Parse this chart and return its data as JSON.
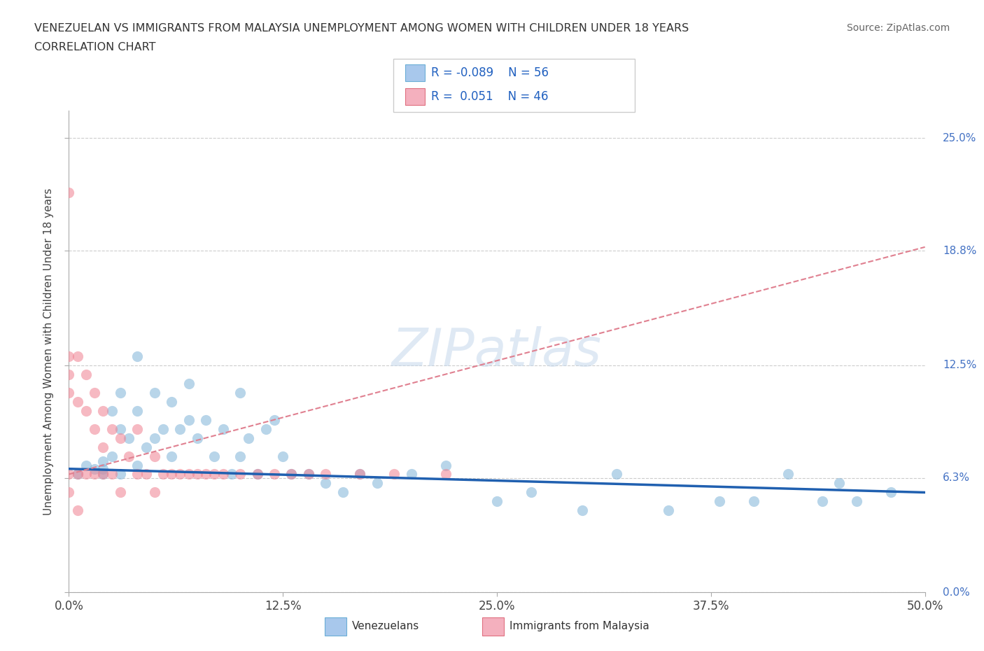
{
  "title_line1": "VENEZUELAN VS IMMIGRANTS FROM MALAYSIA UNEMPLOYMENT AMONG WOMEN WITH CHILDREN UNDER 18 YEARS",
  "title_line2": "CORRELATION CHART",
  "source": "Source: ZipAtlas.com",
  "ylabel": "Unemployment Among Women with Children Under 18 years",
  "xlim": [
    0.0,
    0.5
  ],
  "ylim": [
    0.0,
    0.265
  ],
  "ytick_labels": [
    "0.0%",
    "6.3%",
    "12.5%",
    "18.8%",
    "25.0%"
  ],
  "ytick_values": [
    0.0,
    0.063,
    0.125,
    0.188,
    0.25
  ],
  "xtick_labels": [
    "0.0%",
    "12.5%",
    "25.0%",
    "37.5%",
    "50.0%"
  ],
  "xtick_values": [
    0.0,
    0.125,
    0.25,
    0.375,
    0.5
  ],
  "venezuelan_scatter_color": "#7fb3d8",
  "malaysia_scatter_color": "#f08090",
  "trend_venezuelan_color": "#2060b0",
  "trend_malaysia_color": "#e08090",
  "R_venezuelan": -0.089,
  "N_venezuelan": 56,
  "R_malaysia": 0.051,
  "N_malaysia": 46,
  "legend_labels": [
    "Venezuelans",
    "Immigrants from Malaysia"
  ],
  "watermark": "ZIPatlas",
  "venezuelan_x": [
    0.005,
    0.01,
    0.015,
    0.02,
    0.02,
    0.02,
    0.025,
    0.025,
    0.03,
    0.03,
    0.03,
    0.035,
    0.04,
    0.04,
    0.04,
    0.045,
    0.05,
    0.05,
    0.055,
    0.06,
    0.06,
    0.065,
    0.07,
    0.07,
    0.075,
    0.08,
    0.085,
    0.09,
    0.095,
    0.1,
    0.1,
    0.105,
    0.11,
    0.115,
    0.12,
    0.125,
    0.13,
    0.14,
    0.15,
    0.16,
    0.17,
    0.18,
    0.2,
    0.22,
    0.25,
    0.27,
    0.3,
    0.32,
    0.35,
    0.38,
    0.4,
    0.42,
    0.44,
    0.45,
    0.46,
    0.48
  ],
  "venezuelan_y": [
    0.065,
    0.07,
    0.068,
    0.072,
    0.068,
    0.065,
    0.1,
    0.075,
    0.11,
    0.09,
    0.065,
    0.085,
    0.13,
    0.1,
    0.07,
    0.08,
    0.11,
    0.085,
    0.09,
    0.105,
    0.075,
    0.09,
    0.115,
    0.095,
    0.085,
    0.095,
    0.075,
    0.09,
    0.065,
    0.11,
    0.075,
    0.085,
    0.065,
    0.09,
    0.095,
    0.075,
    0.065,
    0.065,
    0.06,
    0.055,
    0.065,
    0.06,
    0.065,
    0.07,
    0.05,
    0.055,
    0.045,
    0.065,
    0.045,
    0.05,
    0.05,
    0.065,
    0.05,
    0.06,
    0.05,
    0.055
  ],
  "malaysia_x": [
    0.0,
    0.0,
    0.0,
    0.0,
    0.0,
    0.0,
    0.005,
    0.005,
    0.005,
    0.005,
    0.01,
    0.01,
    0.01,
    0.015,
    0.015,
    0.015,
    0.02,
    0.02,
    0.02,
    0.025,
    0.025,
    0.03,
    0.03,
    0.035,
    0.04,
    0.04,
    0.045,
    0.05,
    0.05,
    0.055,
    0.06,
    0.065,
    0.07,
    0.075,
    0.08,
    0.085,
    0.09,
    0.1,
    0.11,
    0.12,
    0.13,
    0.14,
    0.15,
    0.17,
    0.19,
    0.22
  ],
  "malaysia_y": [
    0.22,
    0.13,
    0.12,
    0.11,
    0.065,
    0.055,
    0.13,
    0.105,
    0.065,
    0.045,
    0.12,
    0.1,
    0.065,
    0.11,
    0.09,
    0.065,
    0.1,
    0.08,
    0.065,
    0.09,
    0.065,
    0.085,
    0.055,
    0.075,
    0.09,
    0.065,
    0.065,
    0.075,
    0.055,
    0.065,
    0.065,
    0.065,
    0.065,
    0.065,
    0.065,
    0.065,
    0.065,
    0.065,
    0.065,
    0.065,
    0.065,
    0.065,
    0.065,
    0.065,
    0.065,
    0.065
  ]
}
